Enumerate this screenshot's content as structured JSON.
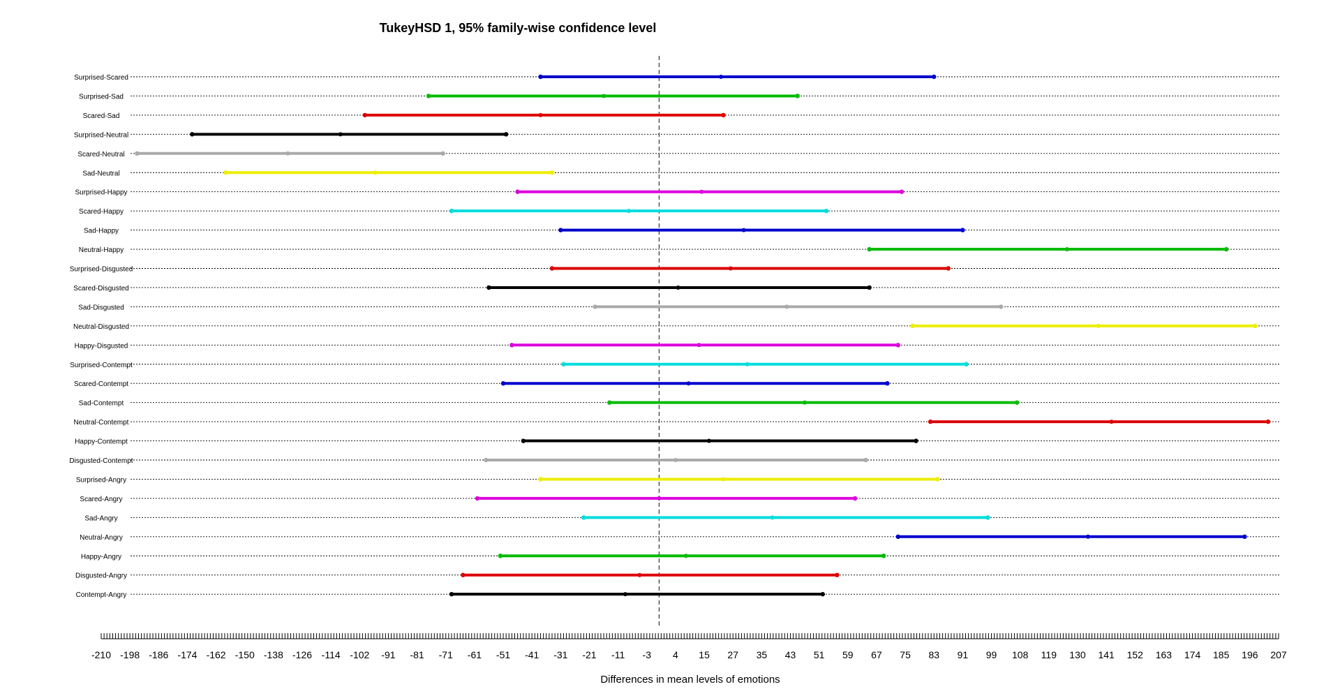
{
  "chart_data": {
    "type": "errorbar",
    "title": "TukeyHSD 1, 95% family-wise confidence level",
    "xlabel": "Differences in mean levels of emotions",
    "ylabel": "",
    "xlim": [
      -210,
      207
    ],
    "reference_line_x": 0,
    "x_ticks": [
      "-210",
      "-198",
      "-186",
      "-174",
      "-162",
      "-150",
      "-138",
      "-126",
      "-114",
      "-102",
      "-91",
      "-81",
      "-71",
      "-61",
      "-51",
      "-41",
      "-31",
      "-21",
      "-11",
      "-3",
      "4",
      "15",
      "27",
      "35",
      "43",
      "51",
      "59",
      "67",
      "75",
      "83",
      "91",
      "99",
      "108",
      "119",
      "130",
      "141",
      "152",
      "163",
      "174",
      "185",
      "196",
      "207"
    ],
    "grid": "horizontal dotted",
    "comparisons": [
      {
        "label": "Surprised-Scared",
        "lwr": -38,
        "diff": 22,
        "upr": 83,
        "color": "#0000cc"
      },
      {
        "label": "Surprised-Sad",
        "lwr": -77,
        "diff": -16,
        "upr": 45,
        "color": "#00bb00"
      },
      {
        "label": "Scared-Sad",
        "lwr": -100,
        "diff": -38,
        "upr": 23,
        "color": "#dd0000"
      },
      {
        "label": "Surprised-Neutral",
        "lwr": -172,
        "diff": -110,
        "upr": -50,
        "color": "#000000"
      },
      {
        "label": "Scared-Neutral",
        "lwr": -195,
        "diff": -132,
        "upr": -72,
        "color": "#aaaaaa"
      },
      {
        "label": "Sad-Neutral",
        "lwr": -158,
        "diff": -96,
        "upr": -34,
        "color": "#eeee00"
      },
      {
        "label": "Surprised-Happy",
        "lwr": -46,
        "diff": 14,
        "upr": 74,
        "color": "#dd00dd"
      },
      {
        "label": "Scared-Happy",
        "lwr": -69,
        "diff": -8,
        "upr": 53,
        "color": "#00dddd"
      },
      {
        "label": "Sad-Happy",
        "lwr": -31,
        "diff": 30,
        "upr": 91,
        "color": "#0000cc"
      },
      {
        "label": "Neutral-Happy",
        "lwr": 65,
        "diff": 126,
        "upr": 187,
        "color": "#00bb00"
      },
      {
        "label": "Surprised-Disgusted",
        "lwr": -34,
        "diff": 26,
        "upr": 87,
        "color": "#dd0000"
      },
      {
        "label": "Scared-Disgusted",
        "lwr": -56,
        "diff": 5,
        "upr": 65,
        "color": "#000000"
      },
      {
        "label": "Sad-Disgusted",
        "lwr": -19,
        "diff": 42,
        "upr": 102,
        "color": "#aaaaaa"
      },
      {
        "label": "Neutral-Disgusted",
        "lwr": 77,
        "diff": 138,
        "upr": 198,
        "color": "#eeee00"
      },
      {
        "label": "Happy-Disgusted",
        "lwr": -48,
        "diff": 13,
        "upr": 73,
        "color": "#dd00dd"
      },
      {
        "label": "Surprised-Contempt",
        "lwr": -30,
        "diff": 31,
        "upr": 92,
        "color": "#00dddd"
      },
      {
        "label": "Scared-Contempt",
        "lwr": -51,
        "diff": 9,
        "upr": 70,
        "color": "#0000cc"
      },
      {
        "label": "Sad-Contempt",
        "lwr": -14,
        "diff": 47,
        "upr": 107,
        "color": "#00bb00"
      },
      {
        "label": "Neutral-Contempt",
        "lwr": 82,
        "diff": 143,
        "upr": 203,
        "color": "#dd0000"
      },
      {
        "label": "Happy-Contempt",
        "lwr": -44,
        "diff": 17,
        "upr": 78,
        "color": "#000000"
      },
      {
        "label": "Disgusted-Contempt",
        "lwr": -57,
        "diff": 4,
        "upr": 64,
        "color": "#aaaaaa"
      },
      {
        "label": "Surprised-Angry",
        "lwr": -38,
        "diff": 23,
        "upr": 84,
        "color": "#eeee00"
      },
      {
        "label": "Scared-Angry",
        "lwr": -60,
        "diff": 0,
        "upr": 61,
        "color": "#dd00dd"
      },
      {
        "label": "Sad-Angry",
        "lwr": -23,
        "diff": 38,
        "upr": 98,
        "color": "#00dddd"
      },
      {
        "label": "Neutral-Angry",
        "lwr": 73,
        "diff": 134,
        "upr": 194,
        "color": "#0000cc"
      },
      {
        "label": "Happy-Angry",
        "lwr": -52,
        "diff": 8,
        "upr": 69,
        "color": "#00bb00"
      },
      {
        "label": "Disgusted-Angry",
        "lwr": -65,
        "diff": -5,
        "upr": 56,
        "color": "#dd0000"
      },
      {
        "label": "Contempt-Angry",
        "lwr": -69,
        "diff": -9,
        "upr": 52,
        "color": "#000000"
      }
    ]
  }
}
